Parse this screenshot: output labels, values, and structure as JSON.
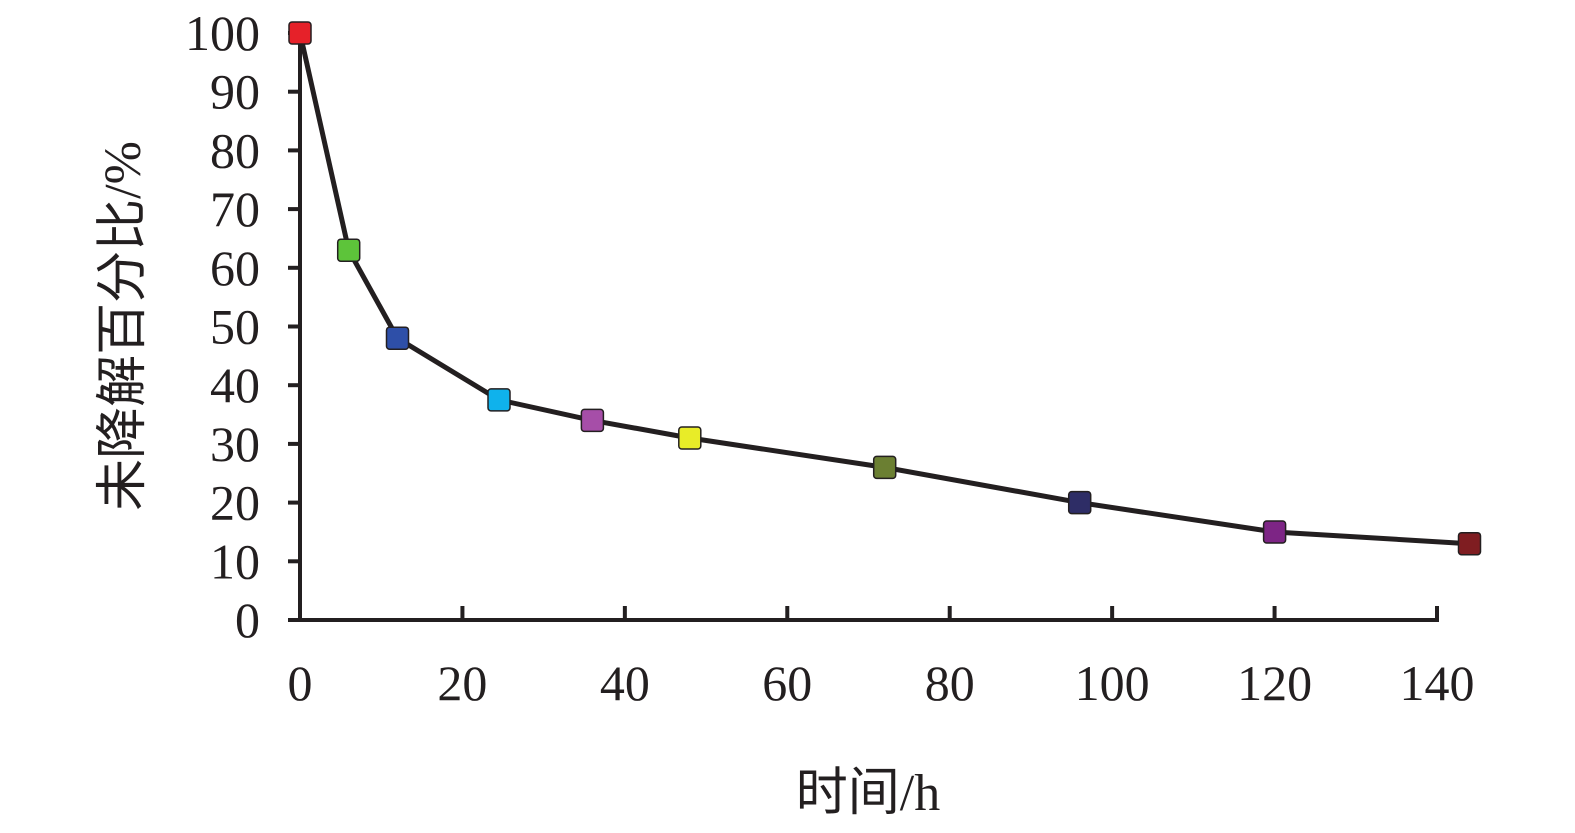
{
  "chart_data": {
    "type": "line",
    "title": "",
    "xlabel": "时间/h",
    "ylabel": "未降解百分比/%",
    "xlim": [
      0,
      140
    ],
    "ylim": [
      0,
      100
    ],
    "x_ticks": [
      0,
      20,
      40,
      60,
      80,
      100,
      120,
      140
    ],
    "y_ticks": [
      0,
      10,
      20,
      30,
      40,
      50,
      60,
      70,
      80,
      90,
      100
    ],
    "x_tick_labels": [
      "0",
      "20",
      "40",
      "60",
      "80",
      "100",
      "120",
      "140"
    ],
    "y_tick_labels": [
      "0",
      "10",
      "20",
      "30",
      "40",
      "50",
      "60",
      "70",
      "80",
      "90",
      "100"
    ],
    "grid": false,
    "legend": "none",
    "x": [
      0,
      6,
      12,
      24.5,
      36,
      48,
      72,
      96,
      120,
      144
    ],
    "series": [
      {
        "values": [
          100,
          63,
          48,
          37.5,
          34,
          31,
          26,
          20,
          15,
          13
        ],
        "line_color": "#231f20",
        "marker": "square",
        "marker_colors": [
          "#e62129",
          "#5dc43a",
          "#2e4fa8",
          "#0fb2ec",
          "#a64ea8",
          "#e8ec28",
          "#6b7f32",
          "#2e2d66",
          "#7d2585",
          "#7f1d21"
        ]
      }
    ]
  }
}
